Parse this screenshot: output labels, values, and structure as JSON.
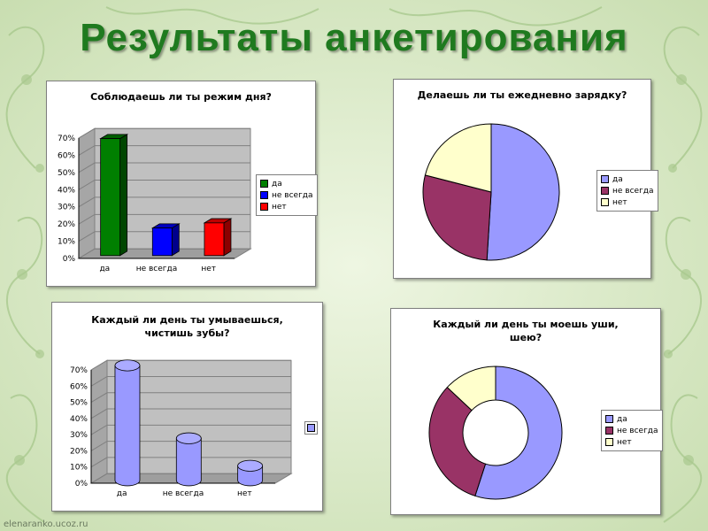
{
  "slide": {
    "title": "Результаты анкетирования",
    "watermark": "elenaranko.ucoz.ru"
  },
  "chart_data": [
    {
      "type": "bar",
      "title": "Соблюдаешь ли ты режим дня?",
      "categories": [
        "да",
        "не всегда",
        "нет"
      ],
      "values": [
        0.68,
        0.16,
        0.19
      ],
      "colors": [
        "#007f00",
        "#0000ff",
        "#ff0000"
      ],
      "ylim": [
        0,
        0.7
      ],
      "yticks": [
        "0%",
        "10%",
        "20%",
        "30%",
        "40%",
        "50%",
        "60%",
        "70%"
      ],
      "legend": [
        "да",
        "не всегда",
        "нет"
      ],
      "legend_position": "right",
      "grid": true,
      "three_d": true
    },
    {
      "type": "pie",
      "title": "Делаешь ли ты ежедневно зарядку?",
      "categories": [
        "да",
        "не всегда",
        "нет"
      ],
      "values": [
        0.51,
        0.28,
        0.21
      ],
      "colors": [
        "#9999ff",
        "#993366",
        "#ffffcc"
      ],
      "legend": [
        "да",
        "не всегда",
        "нет"
      ],
      "legend_position": "right"
    },
    {
      "type": "bar",
      "title_lines": [
        "Каждый ли день ты умываешься,",
        "чистишь зубы?"
      ],
      "categories": [
        "да",
        "не всегда",
        "нет"
      ],
      "values": [
        0.71,
        0.26,
        0.09
      ],
      "colors": [
        "#9999ff",
        "#9999ff",
        "#9999ff"
      ],
      "ylim": [
        0,
        0.7
      ],
      "yticks": [
        "0%",
        "10%",
        "20%",
        "30%",
        "40%",
        "50%",
        "60%",
        "70%"
      ],
      "legend_position": "right",
      "grid": true,
      "shape": "cylinder"
    },
    {
      "type": "pie",
      "title_lines": [
        "Каждый ли день ты моешь уши,",
        "шею?"
      ],
      "categories": [
        "да",
        "не всегда",
        "нет"
      ],
      "values": [
        0.55,
        0.32,
        0.13
      ],
      "colors": [
        "#9999ff",
        "#993366",
        "#ffffcc"
      ],
      "legend": [
        "да",
        "не всегда",
        "нет"
      ],
      "legend_position": "right",
      "donut": true
    }
  ]
}
